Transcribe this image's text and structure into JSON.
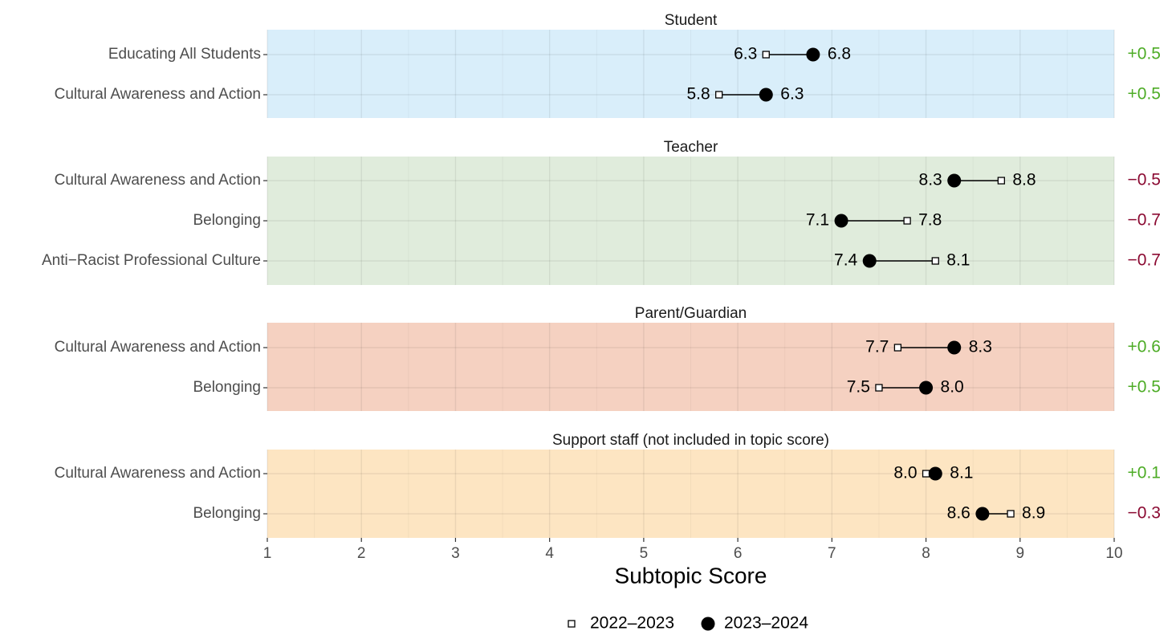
{
  "chart_data": {
    "type": "dumbbell",
    "xlabel": "Subtopic Score",
    "xlim": [
      1,
      10
    ],
    "xticks": [
      1,
      2,
      3,
      4,
      5,
      6,
      7,
      8,
      9,
      10
    ],
    "legend": {
      "placement": "bottom",
      "entries": [
        {
          "label": "2022–2023",
          "marker": "open-square"
        },
        {
          "label": "2023–2024",
          "marker": "filled-circle"
        }
      ]
    },
    "colors": {
      "positive": "#4dac26",
      "negative": "#8b0a32"
    },
    "panels": [
      {
        "title": "Student",
        "background": "#d9eefa",
        "rows": [
          {
            "label": "Educating All Students",
            "y2022": 6.3,
            "y2023": 6.8,
            "y2022_label": "6.3",
            "y2023_label": "6.8",
            "change": "+0.5"
          },
          {
            "label": "Cultural Awareness and Action",
            "y2022": 5.8,
            "y2023": 6.3,
            "y2022_label": "5.8",
            "y2023_label": "6.3",
            "change": "+0.5"
          }
        ]
      },
      {
        "title": "Teacher",
        "background": "#e0ecdc",
        "rows": [
          {
            "label": "Cultural Awareness and Action",
            "y2022": 8.8,
            "y2023": 8.3,
            "y2022_label": "8.8",
            "y2023_label": "8.3",
            "change": "−0.5"
          },
          {
            "label": "Belonging",
            "y2022": 7.8,
            "y2023": 7.1,
            "y2022_label": "7.8",
            "y2023_label": "7.1",
            "change": "−0.7"
          },
          {
            "label": "Anti−Racist Professional Culture",
            "y2022": 8.1,
            "y2023": 7.4,
            "y2022_label": "8.1",
            "y2023_label": "7.4",
            "change": "−0.7"
          }
        ]
      },
      {
        "title": "Parent/Guardian",
        "background": "#f5d1c1",
        "rows": [
          {
            "label": "Cultural Awareness and Action",
            "y2022": 7.7,
            "y2023": 8.3,
            "y2022_label": "7.7",
            "y2023_label": "8.3",
            "change": "+0.6"
          },
          {
            "label": "Belonging",
            "y2022": 7.5,
            "y2023": 8.0,
            "y2022_label": "7.5",
            "y2023_label": "8.0",
            "change": "+0.5"
          }
        ]
      },
      {
        "title": "Support staff (not included in topic score)",
        "background": "#fde5c2",
        "rows": [
          {
            "label": "Cultural Awareness and Action",
            "y2022": 8.0,
            "y2023": 8.1,
            "y2022_label": "8.0",
            "y2023_label": "8.1",
            "change": "+0.1"
          },
          {
            "label": "Belonging",
            "y2022": 8.9,
            "y2023": 8.6,
            "y2022_label": "8.9",
            "y2023_label": "8.6",
            "change": "−0.3"
          }
        ]
      }
    ]
  }
}
